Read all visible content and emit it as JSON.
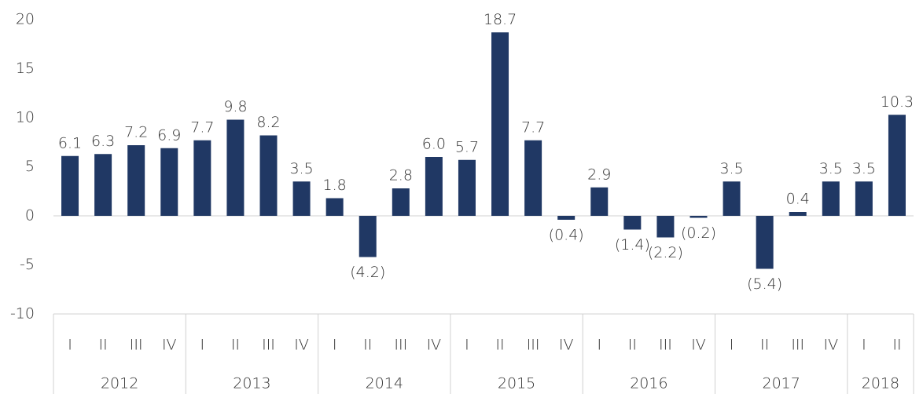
{
  "chart_data": {
    "type": "bar",
    "categories": [
      "I",
      "II",
      "III",
      "IV",
      "I",
      "II",
      "III",
      "IV",
      "I",
      "II",
      "III",
      "IV",
      "I",
      "II",
      "III",
      "IV",
      "I",
      "II",
      "III",
      "IV",
      "I",
      "II",
      "III",
      "IV",
      "I",
      "II"
    ],
    "groups": [
      "2012",
      "2013",
      "2014",
      "2015",
      "2016",
      "2017",
      "2018"
    ],
    "values": [
      6.1,
      6.3,
      7.2,
      6.9,
      7.7,
      9.8,
      8.2,
      3.5,
      1.8,
      -4.2,
      2.8,
      6.0,
      5.7,
      18.7,
      7.7,
      -0.4,
      2.9,
      -1.4,
      -2.2,
      -0.2,
      3.5,
      -5.4,
      0.4,
      3.5,
      3.5,
      10.3
    ],
    "value_labels": [
      "6.1",
      "6.3",
      "7.2",
      "6.9",
      "7.7",
      "9.8",
      "8.2",
      "3.5",
      "1.8",
      "(4.2)",
      "2.8",
      "6.0",
      "5.7",
      "18.7",
      "7.7",
      "(0.4)",
      "2.9",
      "(1.4)",
      "(2.2)",
      "(0.2)",
      "3.5",
      "(5.4)",
      "0.4",
      "3.5",
      "3.5",
      "10.3"
    ],
    "color": "#203864",
    "ylim": [
      -10,
      20
    ],
    "yticks": [
      -10,
      -5,
      0,
      5,
      10,
      15,
      20
    ],
    "grid": false
  }
}
